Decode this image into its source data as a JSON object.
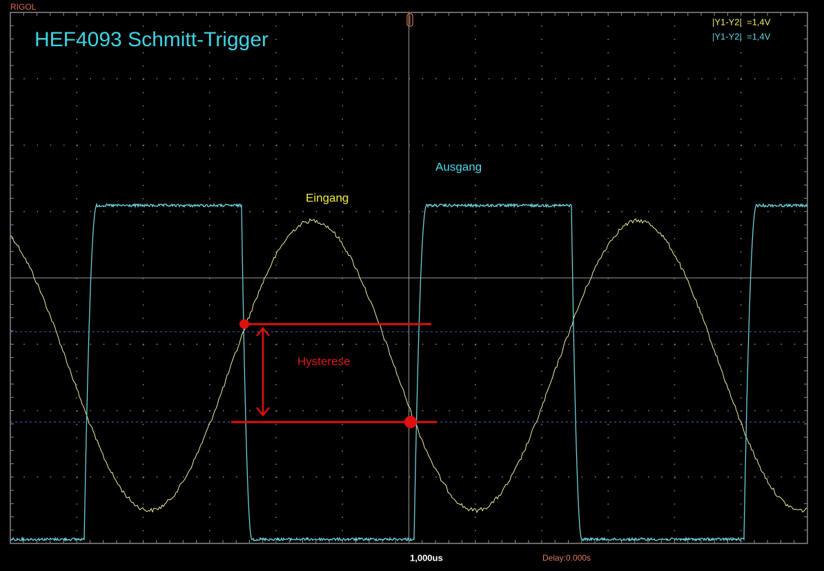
{
  "header": {
    "brand": "RIGOL",
    "title": "HEF4093 Schmitt-Trigger"
  },
  "cursors": [
    "|Y1-Y2|  =1,4V",
    "|Y1-Y2|  =1,4V"
  ],
  "labels": {
    "input": "Eingang",
    "output": "Ausgang",
    "hysteresis": "Hysterese"
  },
  "footer": {
    "timebase": "1,000us",
    "delay": "Delay:0.000s"
  }
}
